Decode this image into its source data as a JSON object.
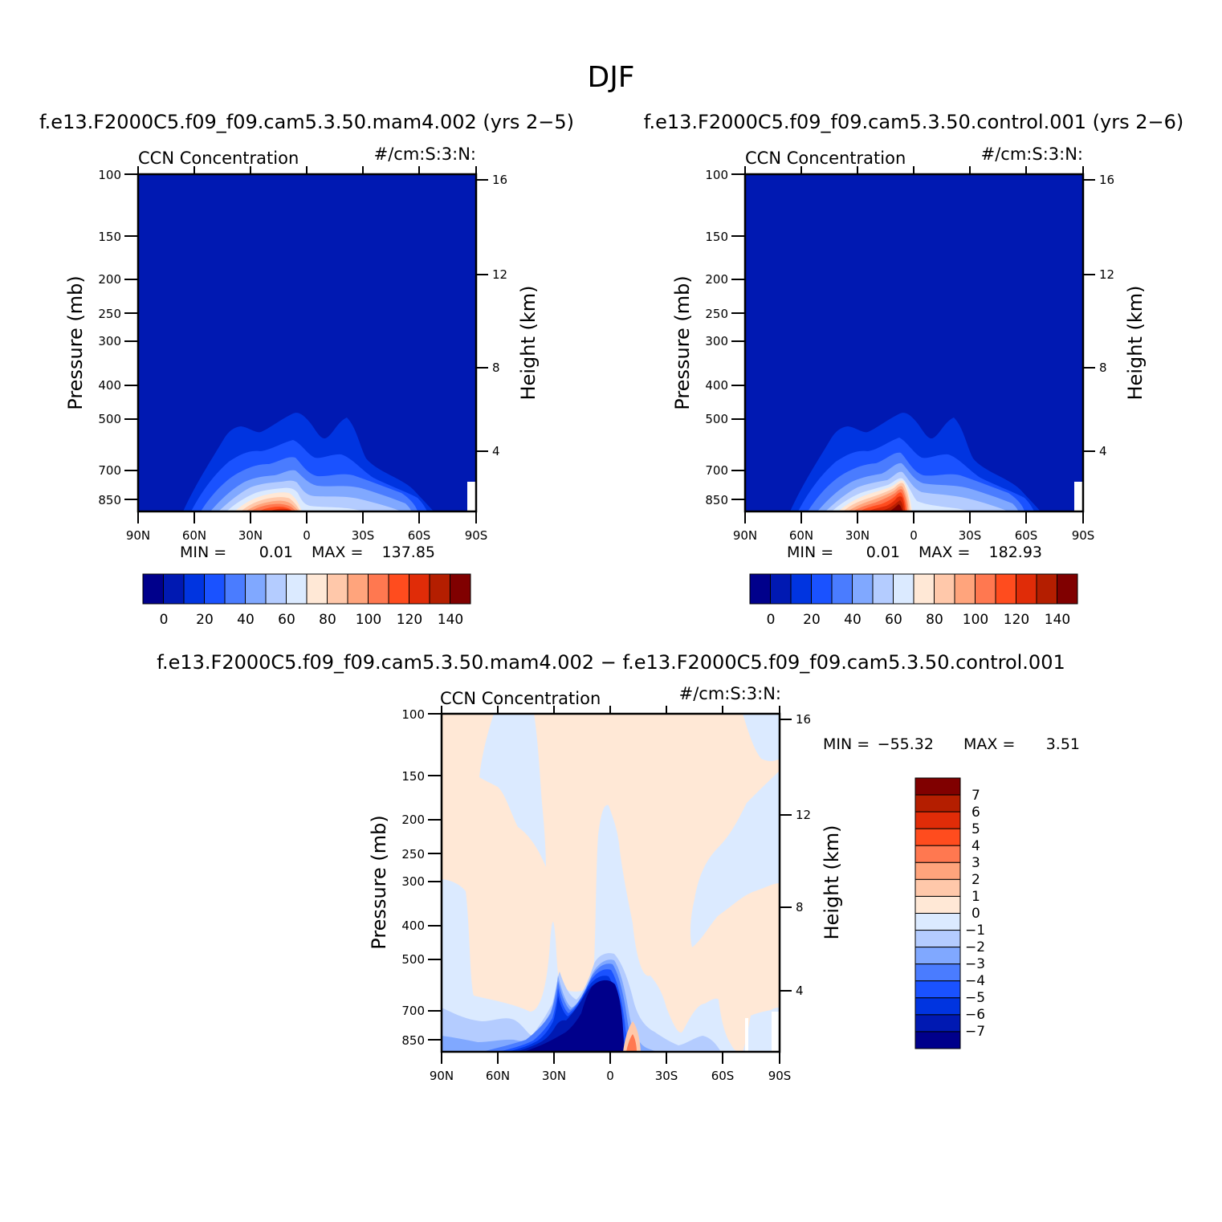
{
  "figure_title": "DJF",
  "colors": {
    "pos_scale": [
      "#00008b",
      "#0019b2",
      "#0034e0",
      "#1a52ff",
      "#4a7cff",
      "#80a8ff",
      "#b4ccff",
      "#dbeaff",
      "#ffe8d6",
      "#ffc8aa",
      "#ffa47c",
      "#ff7850",
      "#ff4c1e",
      "#e02c08",
      "#b41e00",
      "#800000"
    ],
    "diff_scale": [
      "#00008b",
      "#0019b2",
      "#0034e0",
      "#1a52ff",
      "#4a7cff",
      "#80a8ff",
      "#b4ccff",
      "#dbeaff",
      "#ffe8d6",
      "#ffc8aa",
      "#ffa47c",
      "#ff7850",
      "#ff4c1e",
      "#e02c08",
      "#b41e00",
      "#800000"
    ]
  },
  "chart_data": [
    {
      "type": "heatmap",
      "title": "f.e13.F2000C5.f09_f09.cam5.3.50.mam4.002 (yrs 2-5)",
      "subtitle_left": "CCN Concentration",
      "subtitle_right": "#/cm:S:3:N:",
      "xlabel": "",
      "ylabel": "Pressure (mb)",
      "ylabel_right": "Height (km)",
      "x_ticks": [
        "90N",
        "60N",
        "30N",
        "0",
        "30S",
        "60S",
        "90S"
      ],
      "y_ticks": [
        "100",
        "150",
        "200",
        "250",
        "300",
        "400",
        "500",
        "700",
        "850"
      ],
      "y_ticks_right": [
        "16",
        "12",
        "8",
        "4"
      ],
      "ylim": [
        100,
        1000
      ],
      "scale": "log-pressure",
      "min_label": "MIN =",
      "min_value": "0.01",
      "max_label": "MAX =",
      "max_value": "137.85",
      "colorbar_ticks": [
        "0",
        "20",
        "40",
        "60",
        "80",
        "100",
        "120",
        "140"
      ],
      "peak": {
        "lat": -12,
        "pressure": 940,
        "value": 137.85
      }
    },
    {
      "type": "heatmap",
      "title": "f.e13.F2000C5.f09_f09.cam5.3.50.control.001 (yrs 2-6)",
      "subtitle_left": "CCN Concentration",
      "subtitle_right": "#/cm:S:3:N:",
      "xlabel": "",
      "ylabel": "Pressure (mb)",
      "ylabel_right": "Height (km)",
      "x_ticks": [
        "90N",
        "60N",
        "30N",
        "0",
        "30S",
        "60S",
        "90S"
      ],
      "y_ticks": [
        "100",
        "150",
        "200",
        "250",
        "300",
        "400",
        "500",
        "700",
        "850"
      ],
      "y_ticks_right": [
        "16",
        "12",
        "8",
        "4"
      ],
      "ylim": [
        100,
        1000
      ],
      "scale": "log-pressure",
      "min_label": "MIN =",
      "min_value": "0.01",
      "max_label": "MAX =",
      "max_value": "182.93",
      "colorbar_ticks": [
        "0",
        "20",
        "40",
        "60",
        "80",
        "100",
        "120",
        "140"
      ],
      "peak": {
        "lat": -5,
        "pressure": 920,
        "value": 182.93
      }
    },
    {
      "type": "heatmap",
      "title": "f.e13.F2000C5.f09_f09.cam5.3.50.mam4.002 - f.e13.F2000C5.f09_f09.cam5.3.50.control.001",
      "subtitle_left": "CCN Concentration",
      "subtitle_right": "#/cm:S:3:N:",
      "xlabel": "",
      "ylabel": "Pressure (mb)",
      "ylabel_right": "Height (km)",
      "x_ticks": [
        "90N",
        "60N",
        "30N",
        "0",
        "30S",
        "60S",
        "90S"
      ],
      "y_ticks": [
        "100",
        "150",
        "200",
        "250",
        "300",
        "400",
        "500",
        "700",
        "850"
      ],
      "y_ticks_right": [
        "16",
        "12",
        "8",
        "4"
      ],
      "ylim": [
        100,
        1000
      ],
      "scale": "log-pressure",
      "min_label": "MIN =",
      "min_value": "-55.32",
      "max_label": "MAX =",
      "max_value": "3.51",
      "colorbar_ticks": [
        "7",
        "6",
        "5",
        "4",
        "3",
        "2",
        "1",
        "0",
        "-1",
        "-2",
        "-3",
        "-4",
        "-5",
        "-6",
        "-7"
      ],
      "min_location": {
        "lat": 5,
        "pressure": 850
      }
    }
  ]
}
